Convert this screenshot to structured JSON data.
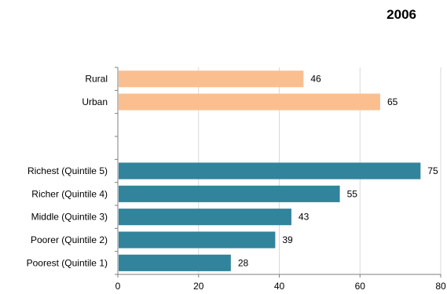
{
  "chart_data": {
    "type": "bar",
    "orientation": "horizontal",
    "title": "2006",
    "xlabel": "",
    "ylabel": "",
    "xlim": [
      0,
      80
    ],
    "x_ticks": [
      0,
      20,
      40,
      60,
      80
    ],
    "grid": true,
    "legend": "none",
    "categories": [
      "Rural",
      "Urban",
      "",
      "",
      "Richest (Quintile 5)",
      "Richer (Quintile 4)",
      "Middle (Quintile 3)",
      "Poorer (Quintile 2)",
      "Poorest (Quintile 1)"
    ],
    "values": [
      46,
      65,
      null,
      null,
      75,
      55,
      43,
      39,
      28
    ],
    "bar_colors": [
      "#fbbf8f",
      "#fbbf8f",
      null,
      null,
      "#31849b",
      "#31849b",
      "#31849b",
      "#31849b",
      "#31849b"
    ]
  }
}
